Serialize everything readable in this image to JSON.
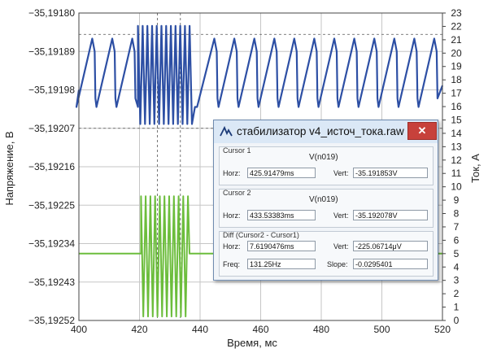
{
  "chart_data": {
    "type": "line",
    "xlabel": "Время, мс",
    "ylabel_left": "Напряжение, В",
    "ylabel_right": "Ток, А",
    "x_range": [
      400,
      520
    ],
    "x_ticks": [
      400,
      420,
      440,
      460,
      480,
      500,
      520
    ],
    "x_tick_labels": [
      "400",
      "420",
      "440",
      "460",
      "480",
      "500",
      "520"
    ],
    "y_left_range": [
      -35.19252,
      -35.1918
    ],
    "y_left_ticks": [
      -35.1918,
      -35.19189,
      -35.19198,
      -35.19207,
      -35.19216,
      -35.19225,
      -35.19234,
      -35.19243,
      -35.19252
    ],
    "y_left_tick_labels": [
      "−35,19180",
      "−35,19189",
      "−35,19198",
      "−35,19207",
      "−35,19216",
      "−35,19225",
      "−35,19234",
      "−35,19243",
      "−35,19252"
    ],
    "y_right_range": [
      0,
      23
    ],
    "y_right_ticks": [
      0,
      1,
      2,
      3,
      4,
      5,
      6,
      7,
      8,
      9,
      10,
      11,
      12,
      13,
      14,
      15,
      16,
      17,
      18,
      19,
      20,
      21,
      22,
      23
    ],
    "grid": true,
    "dashed_markers": {
      "x": [
        425.9,
        433.5
      ],
      "y_left": [
        -35.19185,
        -35.19207
      ]
    },
    "series": [
      {
        "axis": "left",
        "color": "#2d4fa4",
        "sawtooth": {
          "baseline_start": -35.19198,
          "min": -35.19202,
          "peak": -35.19189,
          "period_ms": 6.6,
          "peak_times": [
            405.2,
            411.8,
            418.4,
            445.5,
            452.1,
            458.7,
            465.3,
            471.9,
            478.5,
            485.1,
            491.7,
            498.3,
            504.9,
            511.5,
            518.1
          ]
        },
        "burst": {
          "start_ms": 419.5,
          "end_ms": 437.5,
          "high": -35.19183,
          "low": -35.19206,
          "period_ms": 1.55
        }
      },
      {
        "axis": "right",
        "color": "#6cbd3c",
        "baseline": 5,
        "burst": {
          "start_ms": 420.5,
          "end_ms": 436.5,
          "high": 9.3,
          "low": 0.3,
          "period_ms": 1.55
        }
      }
    ]
  },
  "dialog": {
    "title": "стабилизатор v4_источ_тока.raw",
    "close": "✕",
    "cursor1": {
      "group": "Cursor 1",
      "node": "V(n019)",
      "horz_label": "Horz:",
      "horz": "425.91479ms",
      "vert_label": "Vert:",
      "vert": "-35.191853V"
    },
    "cursor2": {
      "group": "Cursor 2",
      "node": "V(n019)",
      "horz_label": "Horz:",
      "horz": "433.53383ms",
      "vert_label": "Vert:",
      "vert": "-35.192078V"
    },
    "diff": {
      "group": "Diff (Cursor2 - Cursor1)",
      "horz_label": "Horz:",
      "horz": "7.6190476ms",
      "vert_label": "Vert:",
      "vert": "-225.06714μV",
      "freq_label": "Freq:",
      "freq": "131.25Hz",
      "slope_label": "Slope:",
      "slope": "-0.0295401"
    }
  }
}
